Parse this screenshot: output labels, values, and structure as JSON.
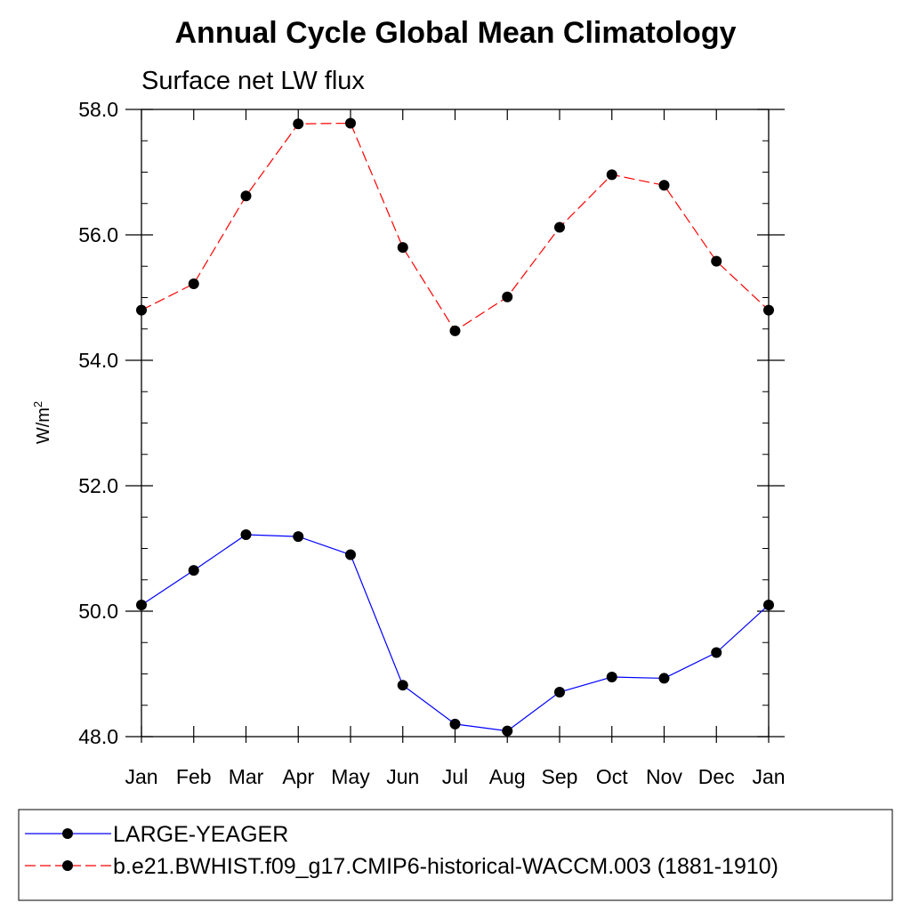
{
  "chart_data": {
    "type": "line",
    "title": "Annual Cycle Global Mean Climatology",
    "subtitle": "Surface net LW flux",
    "xlabel": "",
    "ylabel": "W/m",
    "ylabel_superscript": "2",
    "categories": [
      "Jan",
      "Feb",
      "Mar",
      "Apr",
      "May",
      "Jun",
      "Jul",
      "Aug",
      "Sep",
      "Oct",
      "Nov",
      "Dec",
      "Jan"
    ],
    "ylim": [
      48.0,
      58.0
    ],
    "yticks": [
      "48.0",
      "50.0",
      "52.0",
      "54.0",
      "56.0",
      "58.0"
    ],
    "grid": false,
    "legend_position": "bottom",
    "series": [
      {
        "name": "LARGE-YEAGER",
        "color": "#0000ff",
        "line_style": "solid",
        "marker": "filled-circle",
        "values": [
          50.1,
          50.65,
          51.22,
          51.19,
          50.9,
          48.82,
          48.2,
          48.09,
          48.71,
          48.95,
          48.93,
          49.34,
          50.1
        ]
      },
      {
        "name": "b.e21.BWHIST.f09_g17.CMIP6-historical-WACCM.003 (1881-1910)",
        "color": "#ff0000",
        "line_style": "dashed",
        "marker": "filled-circle",
        "values": [
          54.8,
          55.22,
          56.62,
          57.77,
          57.78,
          55.8,
          54.47,
          55.01,
          56.12,
          56.96,
          56.79,
          55.58,
          54.8
        ]
      }
    ]
  }
}
